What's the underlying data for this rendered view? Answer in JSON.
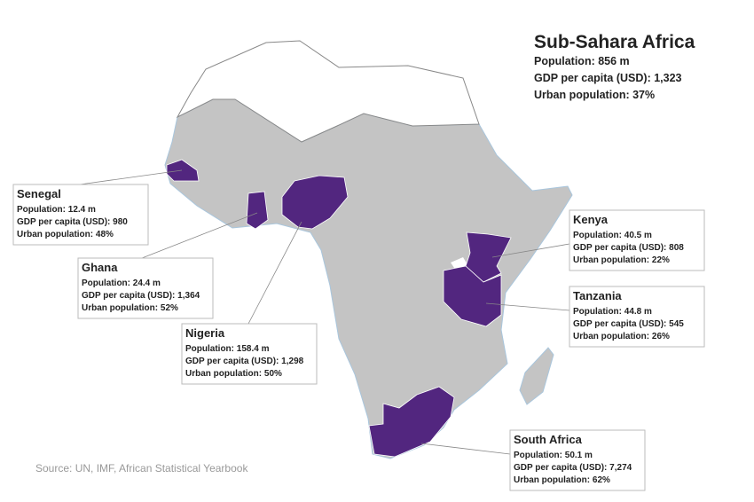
{
  "region": {
    "title": "Sub-Sahara Africa",
    "stats": [
      "Population: 856 m",
      "GDP per capita (USD): 1,323",
      "Urban population: 37%"
    ]
  },
  "countries": [
    {
      "name": "Senegal",
      "lines": [
        "Population: 12.4 m",
        "GDP per capita (USD): 980",
        "Urban population: 48%"
      ]
    },
    {
      "name": "Ghana",
      "lines": [
        "Population: 24.4 m",
        "GDP per capita (USD): 1,364",
        "Urban population: 52%"
      ]
    },
    {
      "name": "Nigeria",
      "lines": [
        "Population: 158.4 m",
        "GDP per capita (USD): 1,298",
        "Urban population: 50%"
      ]
    },
    {
      "name": "Kenya",
      "lines": [
        "Population: 40.5 m",
        "GDP per capita (USD): 808",
        "Urban population: 22%"
      ]
    },
    {
      "name": "Tanzania",
      "lines": [
        "Population: 44.8 m",
        "GDP per capita (USD): 545",
        "Urban population: 26%"
      ]
    },
    {
      "name": "South Africa",
      "lines": [
        "Population: 50.1 m",
        "GDP per capita (USD): 7,274",
        "Urban population: 62%"
      ]
    }
  ],
  "source": "Source: UN, IMF, African Statistical Yearbook"
}
